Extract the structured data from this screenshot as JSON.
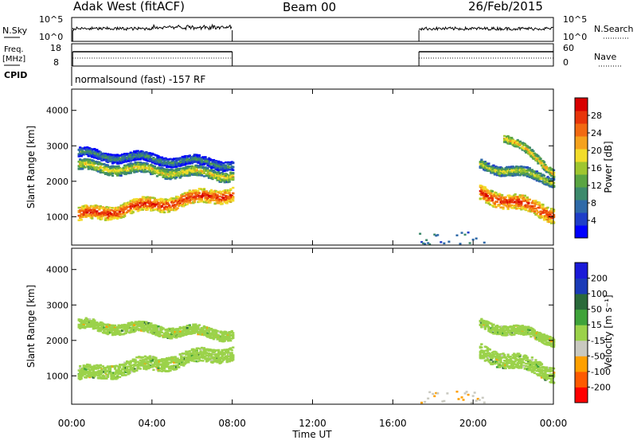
{
  "header": {
    "station": "Adak West (fitACF)",
    "beam": "Beam 00",
    "date": "26/Feb/2015"
  },
  "panels": {
    "nsky_label": "N.Sky",
    "nsky_ticks": [
      "10^5",
      "10^0"
    ],
    "nsearch_label": "N.Search",
    "nsearch_ticks": [
      "10^5",
      "10^0"
    ],
    "freq_label": "Freq.",
    "freq_unit": "[MHz]",
    "freq_ticks": [
      "18",
      "8"
    ],
    "nave_label": "Nave",
    "nave_ticks": [
      "60",
      "0"
    ],
    "cpid_label": "CPID",
    "cpid_text": "normalsound (fast) -157 RF"
  },
  "colors": {
    "power_scale": [
      "#0000ff",
      "#1f3ec8",
      "#2f6aa8",
      "#3d8a6c",
      "#5aa542",
      "#9fc62f",
      "#f2dc2a",
      "#f5a21d",
      "#f26a12",
      "#e8350a",
      "#d80000"
    ],
    "velocity_scale": [
      "#ff0000",
      "#ff5a00",
      "#ffa000",
      "#c9c9c0",
      "#9bd24a",
      "#3fa33a",
      "#2a6a3a",
      "#1a3bb8",
      "#1a1ad8"
    ]
  },
  "chart_data": [
    {
      "type": "heatmap",
      "name": "power",
      "xlabel": "",
      "ylabel": "Slant Range [km]",
      "yticks": [
        1000,
        2000,
        3000,
        4000
      ],
      "ylim": [
        200,
        4600
      ],
      "colorbar_label": "Power [dB]",
      "colorbar_ticks": [
        "4",
        "8",
        "12",
        "16",
        "20",
        "24",
        "28"
      ],
      "colorbar_range": [
        0,
        32
      ],
      "bands": [
        {
          "t0": 0.3,
          "t1": 8.0,
          "r_start": 1050,
          "r_end": 1700,
          "width": 380,
          "value": 27
        },
        {
          "t0": 0.3,
          "t1": 8.0,
          "r_start": 2450,
          "r_end": 2200,
          "width": 280,
          "value": 18
        },
        {
          "t0": 0.3,
          "t1": 8.0,
          "r_start": 2800,
          "r_end": 2500,
          "width": 250,
          "value": 10
        },
        {
          "t0": 20.3,
          "t1": 24.0,
          "r_start": 1700,
          "r_end": 1100,
          "width": 420,
          "value": 27
        },
        {
          "t0": 20.3,
          "t1": 24.0,
          "r_start": 2500,
          "r_end": 2050,
          "width": 260,
          "value": 16
        },
        {
          "t0": 21.5,
          "t1": 24.0,
          "r_start": 3300,
          "r_end": 2300,
          "width": 220,
          "value": 20
        }
      ],
      "data_gap": [
        8.0,
        17.3
      ]
    },
    {
      "type": "heatmap",
      "name": "velocity",
      "xlabel": "Time UT",
      "ylabel": "Slant Range [km]",
      "yticks": [
        1000,
        2000,
        3000,
        4000
      ],
      "ylim": [
        200,
        4600
      ],
      "colorbar_label": "Velocity [m s⁻¹]",
      "colorbar_ticks": [
        "-200",
        "-100",
        "-50",
        "-15",
        "15",
        "50",
        "100",
        "200"
      ],
      "colorbar_range": [
        -250,
        250
      ],
      "bands": [
        {
          "t0": 0.3,
          "t1": 8.0,
          "r_start": 1050,
          "r_end": 1700,
          "width": 380,
          "value": 0
        },
        {
          "t0": 0.3,
          "t1": 8.0,
          "r_start": 2450,
          "r_end": 2200,
          "width": 280,
          "value": 0
        },
        {
          "t0": 20.3,
          "t1": 24.0,
          "r_start": 1700,
          "r_end": 1100,
          "width": 420,
          "value": 0
        },
        {
          "t0": 20.3,
          "t1": 24.0,
          "r_start": 2500,
          "r_end": 2050,
          "width": 260,
          "value": 0
        }
      ],
      "data_gap": [
        8.0,
        17.3
      ]
    }
  ],
  "time_axis": {
    "label": "Time UT",
    "ticks": [
      "00:00",
      "04:00",
      "08:00",
      "12:00",
      "16:00",
      "20:00",
      "00:00"
    ],
    "range_hours": [
      0,
      24
    ]
  }
}
